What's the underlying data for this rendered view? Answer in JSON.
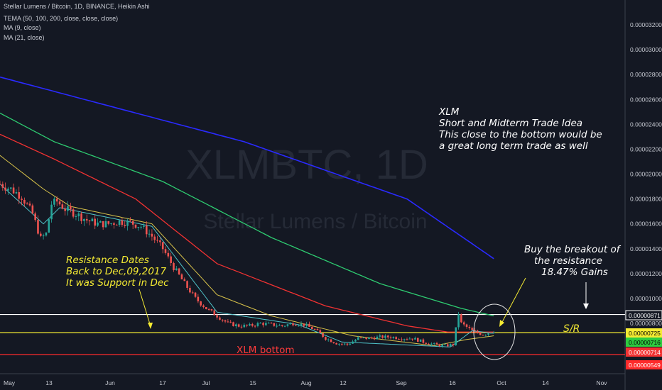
{
  "header": {
    "title": "Stellar Lumens / Bitcoin, 1D, BINANCE, Heikin Ashi",
    "indicators": [
      "TEMA (50, 100, 200, close, close, close)",
      "MA (9, close)",
      "MA (21, close)"
    ]
  },
  "watermark": {
    "symbol": "XLMBTC, 1D",
    "name": "Stellar Lumens / Bitcoin"
  },
  "annotations": {
    "idea_lines": [
      "XLM",
      "Short and Midterm Trade Idea",
      "This close to the bottom would be",
      "a great long term trade as well"
    ],
    "resistance_lines": [
      "Resistance Dates",
      "Back to Dec,09,2017",
      "It was Support in Dec"
    ],
    "breakout_lines": [
      "Buy the breakout of",
      "the resistance",
      "18.47% Gains"
    ],
    "bottom_label": "XLM bottom",
    "sr_label": "S/R"
  },
  "colors": {
    "background": "#141823",
    "candle_up": "#26a69a",
    "candle_down": "#ef5350",
    "tema50": "#2ecc71",
    "tema100": "#f23232",
    "tema200": "#2a2aff",
    "ma9": "#4fc3c9",
    "ma21": "#d8c24a",
    "resistance_line": "#ffffff",
    "sr_line": "#f5eb33",
    "bottom_line": "#ff2b2b"
  },
  "chart_data": {
    "type": "candlestick",
    "title": "Stellar Lumens / Bitcoin, 1D, BINANCE, Heikin Ashi",
    "x_ticks": [
      "May",
      "13",
      "Jun",
      "17",
      "Jul",
      "15",
      "Aug",
      "12",
      "Sep",
      "16",
      "Oct",
      "14",
      "Nov"
    ],
    "y_ticks": [
      "0.00003200",
      "0.00003000",
      "0.00002800",
      "0.00002600",
      "0.00002400",
      "0.00002200",
      "0.00002000",
      "0.00001800",
      "0.00001600",
      "0.00001400",
      "0.00001200",
      "0.00001000",
      "0.00000800"
    ],
    "price_badges": [
      {
        "label": "0.00000871",
        "value": 8.71e-06,
        "style": "line-white"
      },
      {
        "label": "0.00000725",
        "value": 7.25e-06,
        "style": "line-yellow"
      },
      {
        "label": "0.00000716",
        "value": 7.16e-06,
        "style": "green"
      },
      {
        "label": "0.00000714",
        "value": 7.14e-06,
        "style": "red"
      },
      {
        "label": "0.00000549",
        "value": 5.49e-06,
        "style": "line-red"
      }
    ],
    "horizontal_levels": [
      {
        "value": 8.71e-06,
        "color": "#ffffff"
      },
      {
        "value": 7.25e-06,
        "color": "#f5eb33"
      },
      {
        "value": 5.49e-06,
        "color": "#ff2b2b"
      }
    ],
    "ylim": [
      5.4e-06,
      3.34e-05
    ],
    "price_path": [
      [
        0,
        1.92e-05
      ],
      [
        4,
        1.88e-05
      ],
      [
        8,
        1.82e-05
      ],
      [
        12,
        1.68e-05
      ],
      [
        15,
        1.48e-05
      ],
      [
        17,
        1.52e-05
      ],
      [
        19,
        1.76e-05
      ],
      [
        21,
        1.78e-05
      ],
      [
        24,
        1.72e-05
      ],
      [
        28,
        1.68e-05
      ],
      [
        32,
        1.63e-05
      ],
      [
        36,
        1.6e-05
      ],
      [
        40,
        1.6e-05
      ],
      [
        44,
        1.62e-05
      ],
      [
        48,
        1.61e-05
      ],
      [
        52,
        1.58e-05
      ],
      [
        56,
        1.5e-05
      ],
      [
        60,
        1.4e-05
      ],
      [
        64,
        1.25e-05
      ],
      [
        68,
        1.12e-05
      ],
      [
        72,
        1e-05
      ],
      [
        76,
        9.2e-06
      ],
      [
        80,
        8.6e-06
      ],
      [
        84,
        8e-06
      ],
      [
        88,
        7.8e-06
      ],
      [
        92,
        7.8e-06
      ],
      [
        96,
        8e-06
      ],
      [
        100,
        7.9e-06
      ],
      [
        104,
        7.8e-06
      ],
      [
        108,
        8e-06
      ],
      [
        112,
        7.9e-06
      ],
      [
        116,
        7.5e-06
      ],
      [
        120,
        6.8e-06
      ],
      [
        124,
        6.4e-06
      ],
      [
        128,
        6.3e-06
      ],
      [
        132,
        6.8e-06
      ],
      [
        136,
        6.8e-06
      ],
      [
        140,
        6.9e-06
      ],
      [
        144,
        6.9e-06
      ],
      [
        148,
        6.8e-06
      ],
      [
        152,
        6.8e-06
      ],
      [
        156,
        6.5e-06
      ],
      [
        160,
        6.3e-06
      ],
      [
        164,
        6.2e-06
      ],
      [
        167,
        6.3e-06
      ],
      [
        169,
        8.8e-06
      ],
      [
        170,
        8e-06
      ],
      [
        174,
        7.4e-06
      ],
      [
        178,
        7.1e-06
      ],
      [
        182,
        7.4e-06
      ]
    ],
    "tema200": [
      [
        0,
        2.78e-05
      ],
      [
        90,
        2.26e-05
      ],
      [
        150,
        1.8e-05
      ],
      [
        182,
        1.32e-05
      ]
    ],
    "tema50": [
      [
        0,
        2.49e-05
      ],
      [
        20,
        2.26e-05
      ],
      [
        60,
        1.94e-05
      ],
      [
        100,
        1.49e-05
      ],
      [
        140,
        1.12e-05
      ],
      [
        170,
        9.2e-06
      ],
      [
        182,
        8.6e-06
      ]
    ],
    "tema100": [
      [
        0,
        2.32e-05
      ],
      [
        20,
        2.12e-05
      ],
      [
        50,
        1.8e-05
      ],
      [
        80,
        1.28e-05
      ],
      [
        120,
        9.4e-06
      ],
      [
        150,
        7.8e-06
      ],
      [
        165,
        7.3e-06
      ],
      [
        182,
        7.3e-06
      ]
    ],
    "ma21": [
      [
        0,
        2.15e-05
      ],
      [
        16,
        1.88e-05
      ],
      [
        26,
        1.74e-05
      ],
      [
        56,
        1.6e-05
      ],
      [
        80,
        1.03e-05
      ],
      [
        100,
        8.6e-06
      ],
      [
        130,
        7e-06
      ],
      [
        160,
        6.2e-06
      ],
      [
        172,
        6.7e-06
      ],
      [
        182,
        7e-06
      ]
    ],
    "ma9": [
      [
        0,
        1.92e-05
      ],
      [
        16,
        1.6e-05
      ],
      [
        22,
        1.73e-05
      ],
      [
        56,
        1.58e-05
      ],
      [
        80,
        8.9e-06
      ],
      [
        110,
        7.9e-06
      ],
      [
        126,
        6.5e-06
      ],
      [
        166,
        6.1e-06
      ],
      [
        174,
        7.4e-06
      ],
      [
        182,
        7.2e-06
      ]
    ]
  }
}
